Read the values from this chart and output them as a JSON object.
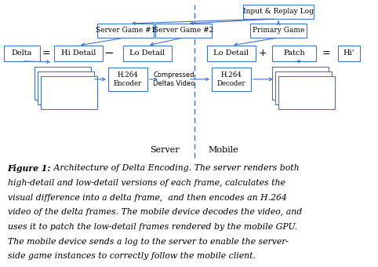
{
  "box_color": "#4472C4",
  "box_face": "#FFFFFF",
  "background": "#FFFFFF",
  "caption_lines": [
    [
      "bold",
      "Figure 1: ",
      "italic",
      "Architecture of Delta Encoding. The server renders both"
    ],
    [
      "italic",
      "high-detail and low-detail versions of each frame, calculates the"
    ],
    [
      "italic",
      "visual difference into a delta frame,  and then encodes an H.264"
    ],
    [
      "italic",
      "video of the delta frames. The mobile device decodes the video, and"
    ],
    [
      "italic",
      "uses it to patch the low-detail frames rendered by the mobile GPU."
    ],
    [
      "italic",
      "The mobile device sends a log to the server to enable the server-"
    ],
    [
      "italic",
      "side game instances to correctly follow the mobile client."
    ]
  ]
}
